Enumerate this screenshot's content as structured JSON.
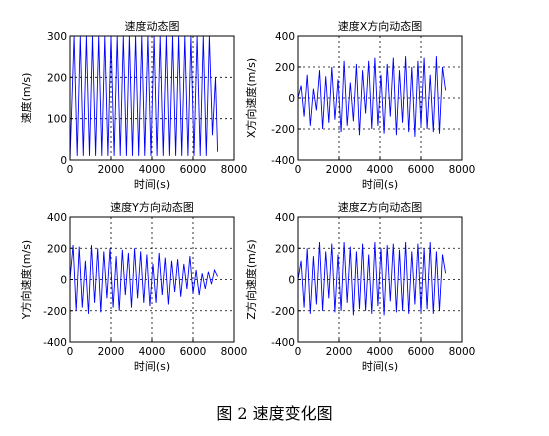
{
  "figure": {
    "caption": "图 2  速度变化图"
  },
  "chart_data": [
    {
      "type": "line",
      "title": "速度动态图",
      "xlabel": "时间(s)",
      "ylabel": "速度(m/s)",
      "xlim": [
        0,
        8000
      ],
      "ylim": [
        0,
        300
      ],
      "xticks": [
        0,
        2000,
        4000,
        6000,
        8000
      ],
      "yticks": [
        0,
        100,
        200,
        300
      ],
      "grid": "dashed",
      "series": [
        {
          "color": "#0000ff",
          "x": [
            0,
            200,
            350,
            500,
            650,
            800,
            950,
            1100,
            1250,
            1400,
            1550,
            1700,
            1850,
            2000,
            2150,
            2300,
            2450,
            2600,
            2750,
            2900,
            3050,
            3200,
            3350,
            3500,
            3650,
            3800,
            3950,
            4100,
            4250,
            4400,
            4550,
            4700,
            4850,
            5000,
            5150,
            5300,
            5450,
            5600,
            5750,
            5900,
            6050,
            6200,
            6350,
            6500,
            6650,
            6800,
            6950,
            7100,
            7200
          ],
          "y": [
            0,
            300,
            10,
            300,
            10,
            300,
            10,
            300,
            10,
            300,
            10,
            300,
            10,
            300,
            10,
            300,
            10,
            300,
            10,
            300,
            10,
            300,
            10,
            300,
            10,
            300,
            10,
            300,
            10,
            300,
            10,
            300,
            10,
            300,
            10,
            300,
            10,
            300,
            10,
            300,
            10,
            300,
            10,
            300,
            10,
            300,
            60,
            200,
            20
          ]
        }
      ]
    },
    {
      "type": "line",
      "title": "速度X方向动态图",
      "xlabel": "时间(s)",
      "ylabel": "X方向速度(m/s)",
      "xlim": [
        0,
        8000
      ],
      "ylim": [
        -400,
        400
      ],
      "xticks": [
        0,
        2000,
        4000,
        6000,
        8000
      ],
      "yticks": [
        -400,
        -200,
        0,
        200,
        400
      ],
      "grid": "dashed",
      "series": [
        {
          "color": "#0000ff",
          "x": [
            0,
            150,
            300,
            450,
            600,
            750,
            900,
            1050,
            1200,
            1350,
            1500,
            1650,
            1800,
            1950,
            2100,
            2250,
            2400,
            2550,
            2700,
            2850,
            3000,
            3150,
            3300,
            3450,
            3600,
            3750,
            3900,
            4050,
            4200,
            4350,
            4500,
            4650,
            4800,
            4950,
            5100,
            5250,
            5400,
            5550,
            5700,
            5850,
            6000,
            6150,
            6300,
            6450,
            6600,
            6750,
            6900,
            7050,
            7200
          ],
          "y": [
            0,
            80,
            -120,
            150,
            -180,
            60,
            -80,
            180,
            -200,
            140,
            -160,
            200,
            -140,
            120,
            -220,
            240,
            -180,
            100,
            -150,
            220,
            -240,
            180,
            -100,
            240,
            -200,
            260,
            -180,
            150,
            -230,
            220,
            -120,
            260,
            -240,
            180,
            -160,
            270,
            -220,
            200,
            -250,
            240,
            -180,
            260,
            -200,
            150,
            -220,
            270,
            -230,
            200,
            50
          ]
        }
      ]
    },
    {
      "type": "line",
      "title": "速度Y方向动态图",
      "xlabel": "时间(s)",
      "ylabel": "Y方向速度(m/s)",
      "xlim": [
        0,
        8000
      ],
      "ylim": [
        -400,
        400
      ],
      "xticks": [
        0,
        2000,
        4000,
        6000,
        8000
      ],
      "yticks": [
        -400,
        -200,
        0,
        200,
        400
      ],
      "grid": "dashed",
      "series": [
        {
          "color": "#0000ff",
          "x": [
            0,
            150,
            300,
            450,
            600,
            750,
            900,
            1050,
            1200,
            1350,
            1500,
            1650,
            1800,
            1950,
            2100,
            2250,
            2400,
            2550,
            2700,
            2850,
            3000,
            3150,
            3300,
            3450,
            3600,
            3750,
            3900,
            4050,
            4200,
            4350,
            4500,
            4650,
            4800,
            4950,
            5100,
            5250,
            5400,
            5550,
            5700,
            5850,
            6000,
            6150,
            6300,
            6450,
            6600,
            6750,
            6900,
            7050,
            7200
          ],
          "y": [
            0,
            220,
            -200,
            210,
            -180,
            120,
            -220,
            220,
            -150,
            200,
            -210,
            180,
            -120,
            200,
            -180,
            150,
            -200,
            190,
            -100,
            170,
            -180,
            200,
            -120,
            180,
            -150,
            160,
            -170,
            100,
            -150,
            170,
            -100,
            140,
            -160,
            120,
            -80,
            130,
            -110,
            100,
            -60,
            150,
            -90,
            60,
            -100,
            40,
            -60,
            50,
            -30,
            60,
            20
          ]
        }
      ]
    },
    {
      "type": "line",
      "title": "速度Z方向动态图",
      "xlabel": "时间(s)",
      "ylabel": "Z方向速度(m/s)",
      "xlim": [
        0,
        8000
      ],
      "ylim": [
        -400,
        400
      ],
      "xticks": [
        0,
        2000,
        4000,
        6000,
        8000
      ],
      "yticks": [
        -400,
        -200,
        0,
        200,
        400
      ],
      "grid": "dashed",
      "series": [
        {
          "color": "#0000ff",
          "x": [
            0,
            150,
            300,
            450,
            600,
            750,
            900,
            1050,
            1200,
            1350,
            1500,
            1650,
            1800,
            1950,
            2100,
            2250,
            2400,
            2550,
            2700,
            2850,
            3000,
            3150,
            3300,
            3450,
            3600,
            3750,
            3900,
            4050,
            4200,
            4350,
            4500,
            4650,
            4800,
            4950,
            5100,
            5250,
            5400,
            5550,
            5700,
            5850,
            6000,
            6150,
            6300,
            6450,
            6600,
            6750,
            6900,
            7050,
            7200
          ],
          "y": [
            0,
            120,
            -180,
            200,
            -220,
            150,
            -160,
            240,
            -200,
            180,
            -120,
            230,
            -210,
            160,
            -200,
            240,
            -150,
            210,
            -230,
            180,
            -190,
            230,
            -200,
            160,
            -220,
            240,
            -170,
            200,
            -230,
            220,
            -140,
            230,
            -210,
            190,
            -200,
            240,
            -220,
            180,
            -160,
            230,
            -210,
            200,
            -190,
            240,
            -220,
            180,
            -200,
            160,
            40
          ]
        }
      ]
    }
  ]
}
